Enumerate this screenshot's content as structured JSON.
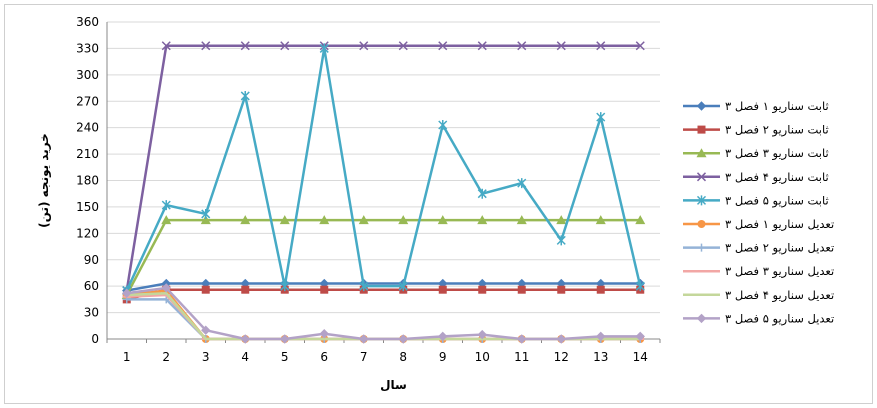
{
  "chart_data": {
    "type": "line",
    "xlabel": "سال",
    "ylabel": "خرید یونجه (تن)",
    "x": [
      1,
      2,
      3,
      4,
      5,
      6,
      7,
      8,
      9,
      10,
      11,
      12,
      13,
      14
    ],
    "yticks": [
      0,
      30,
      60,
      90,
      120,
      150,
      180,
      210,
      240,
      270,
      300,
      330,
      360
    ],
    "ylim": [
      0,
      360
    ],
    "grid": true,
    "legend": "right",
    "series": [
      {
        "name": "ثابت سناریو ۱ فصل ۳",
        "color": "#4A7EBB",
        "marker": "diamond",
        "values": [
          55,
          63,
          63,
          63,
          63,
          63,
          63,
          63,
          63,
          63,
          63,
          63,
          63,
          63
        ]
      },
      {
        "name": "ثابت سناریو ۲ فصل ۳",
        "color": "#BE4B48",
        "marker": "square",
        "values": [
          45,
          56,
          56,
          56,
          56,
          56,
          56,
          56,
          56,
          56,
          56,
          56,
          56,
          56
        ]
      },
      {
        "name": "ثابت سناریو ۳ فصل ۳",
        "color": "#98B954",
        "marker": "triangle",
        "values": [
          50,
          135,
          135,
          135,
          135,
          135,
          135,
          135,
          135,
          135,
          135,
          135,
          135,
          135
        ]
      },
      {
        "name": "ثابت سناریو ۴ فصل ۳",
        "color": "#7D60A0",
        "marker": "x",
        "values": [
          55,
          333,
          333,
          333,
          333,
          333,
          333,
          333,
          333,
          333,
          333,
          333,
          333,
          333
        ]
      },
      {
        "name": "ثابت سناریو ۵ فصل ۳",
        "color": "#46AAC5",
        "marker": "star",
        "values": [
          55,
          152,
          142,
          276,
          60,
          330,
          60,
          60,
          243,
          165,
          177,
          112,
          252,
          60
        ]
      },
      {
        "name": "تعدیل سناریو ۱ فصل ۳",
        "color": "#F79646",
        "marker": "circle",
        "values": [
          50,
          55,
          0,
          0,
          0,
          0,
          0,
          0,
          0,
          0,
          0,
          0,
          0,
          0
        ]
      },
      {
        "name": "تعدیل سناریو ۲ فصل ۳",
        "color": "#95B3D7",
        "marker": "plus",
        "values": [
          45,
          45,
          0,
          0,
          0,
          0,
          0,
          0,
          0,
          0,
          0,
          0,
          0,
          0
        ]
      },
      {
        "name": "تعدیل سناریو ۳ فصل ۳",
        "color": "#F2A7A5",
        "marker": "dash",
        "values": [
          48,
          50,
          0,
          0,
          0,
          0,
          0,
          0,
          0,
          0,
          0,
          0,
          0,
          0
        ]
      },
      {
        "name": "تعدیل سناریو ۴ فصل ۳",
        "color": "#C4D79B",
        "marker": "none",
        "values": [
          50,
          52,
          0,
          0,
          0,
          0,
          0,
          0,
          0,
          0,
          0,
          0,
          0,
          0
        ]
      },
      {
        "name": "تعدیل سناریو ۵ فصل ۳",
        "color": "#B3A2C7",
        "marker": "diamond",
        "values": [
          52,
          58,
          10,
          0,
          0,
          6,
          0,
          0,
          3,
          5,
          0,
          0,
          3,
          3
        ]
      }
    ]
  }
}
